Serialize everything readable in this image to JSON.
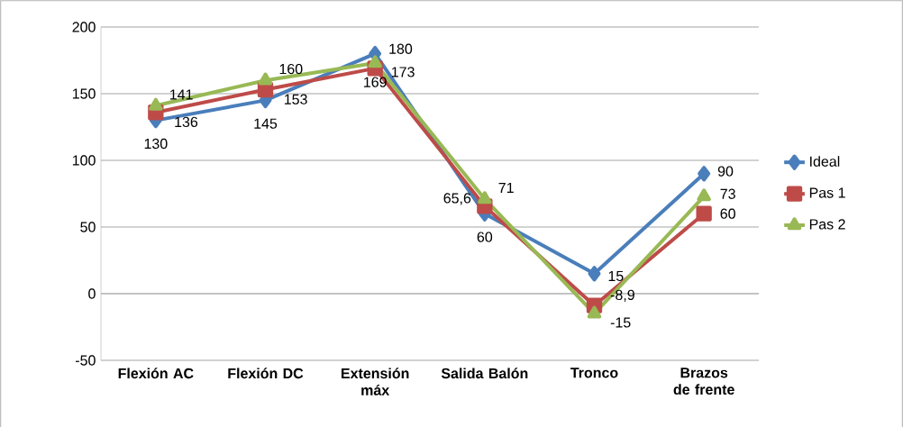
{
  "chart_data": {
    "type": "line",
    "categories": [
      "Flexión AC",
      "Flexión DC",
      "Extensión máx",
      "Salida Balón",
      "Tronco",
      "Brazos de frente"
    ],
    "series": [
      {
        "name": "Ideal",
        "color": "#4a7ebb",
        "marker": "diamond",
        "values": [
          130,
          145,
          180,
          60,
          15,
          90
        ],
        "value_labels": [
          "130",
          "145",
          "180",
          "60",
          "15",
          "90"
        ]
      },
      {
        "name": "Pas 1",
        "color": "#be4b48",
        "marker": "square",
        "values": [
          136,
          153,
          169,
          65.6,
          -8.9,
          60
        ],
        "value_labels": [
          "136",
          "153",
          "169",
          "65,6",
          "-8,9",
          "60"
        ]
      },
      {
        "name": "Pas 2",
        "color": "#98b954",
        "marker": "triangle",
        "values": [
          141,
          160,
          173,
          71,
          -15,
          73
        ],
        "value_labels": [
          "141",
          "160",
          "173",
          "71",
          "-15",
          "73"
        ]
      }
    ],
    "ylim": [
      -50,
      200
    ],
    "yticks": [
      -50,
      0,
      50,
      100,
      150,
      200
    ],
    "grid": "y",
    "legend": "right"
  }
}
